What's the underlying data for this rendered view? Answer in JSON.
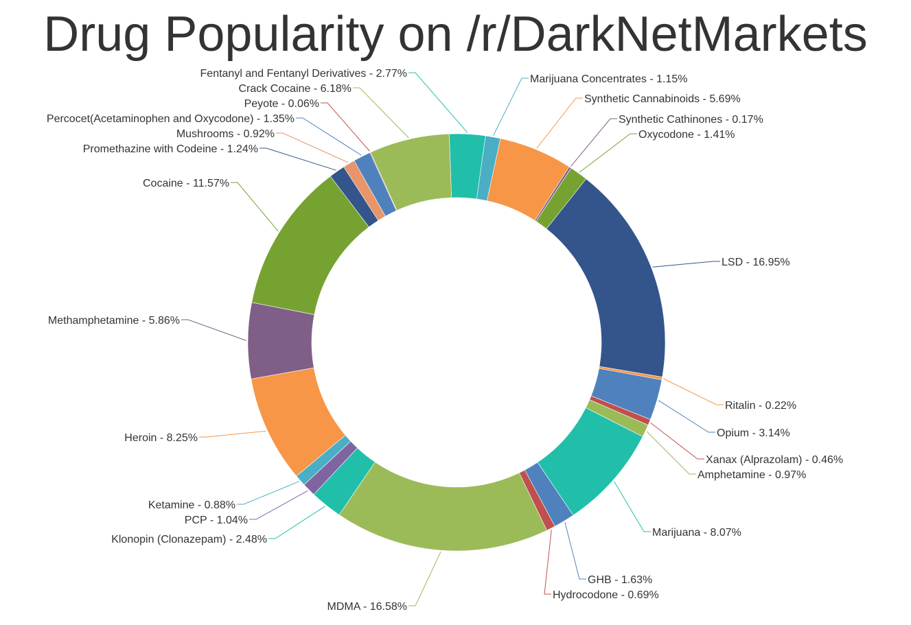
{
  "chart_data": {
    "type": "pie",
    "title": "Drug Popularity on /r/DarkNetMarkets",
    "donut": true,
    "legend": "labels around ring",
    "slices": [
      {
        "label": "Fentanyl and Fentanyl Derivatives - 2.77%",
        "value": 2.77,
        "color": "#21bfaa"
      },
      {
        "label": "Marijuana Concentrates - 1.15%",
        "value": 1.15,
        "color": "#4aaec4"
      },
      {
        "label": "Synthetic Cannabinoids - 5.69%",
        "value": 5.69,
        "color": "#f79647"
      },
      {
        "label": "Synthetic Cathinones - 0.17%",
        "value": 0.17,
        "color": "#7f5f87"
      },
      {
        "label": "Oxycodone - 1.41%",
        "value": 1.41,
        "color": "#76a232"
      },
      {
        "label": "LSD - 16.95%",
        "value": 16.95,
        "color": "#33558b"
      },
      {
        "label": "Ritalin - 0.22%",
        "value": 0.22,
        "color": "#f79647"
      },
      {
        "label": "Opium - 3.14%",
        "value": 3.14,
        "color": "#4f81bd"
      },
      {
        "label": "Xanax (Alprazolam) - 0.46%",
        "value": 0.46,
        "color": "#c0504d"
      },
      {
        "label": "Amphetamine - 0.97%",
        "value": 0.97,
        "color": "#9bbb59"
      },
      {
        "label": "Marijuana - 8.07%",
        "value": 8.07,
        "color": "#21bfaa"
      },
      {
        "label": "GHB - 1.63%",
        "value": 1.63,
        "color": "#4f81bd"
      },
      {
        "label": "Hydrocodone - 0.69%",
        "value": 0.69,
        "color": "#c0504d"
      },
      {
        "label": "MDMA - 16.58%",
        "value": 16.58,
        "color": "#9bbb59"
      },
      {
        "label": "Klonopin (Clonazepam) - 2.48%",
        "value": 2.48,
        "color": "#21bfaa"
      },
      {
        "label": "PCP - 1.04%",
        "value": 1.04,
        "color": "#8064a2"
      },
      {
        "label": "Ketamine - 0.88%",
        "value": 0.88,
        "color": "#4aaec4"
      },
      {
        "label": "Heroin - 8.25%",
        "value": 8.25,
        "color": "#f79647"
      },
      {
        "label": "Methamphetamine - 5.86%",
        "value": 5.86,
        "color": "#7f5f87"
      },
      {
        "label": "Cocaine - 11.57%",
        "value": 11.57,
        "color": "#76a232"
      },
      {
        "label": "Promethazine with Codeine - 1.24%",
        "value": 1.24,
        "color": "#33558b"
      },
      {
        "label": "Mushrooms - 0.92%",
        "value": 0.92,
        "color": "#e8956b"
      },
      {
        "label": "Percocet(Acetaminophen and Oxycodone) - 1.35%",
        "value": 1.35,
        "color": "#4f81bd"
      },
      {
        "label": "Peyote - 0.06%",
        "value": 0.06,
        "color": "#c0504d"
      },
      {
        "label": "Crack Cocaine - 6.18%",
        "value": 6.18,
        "color": "#9bbb59"
      }
    ]
  }
}
